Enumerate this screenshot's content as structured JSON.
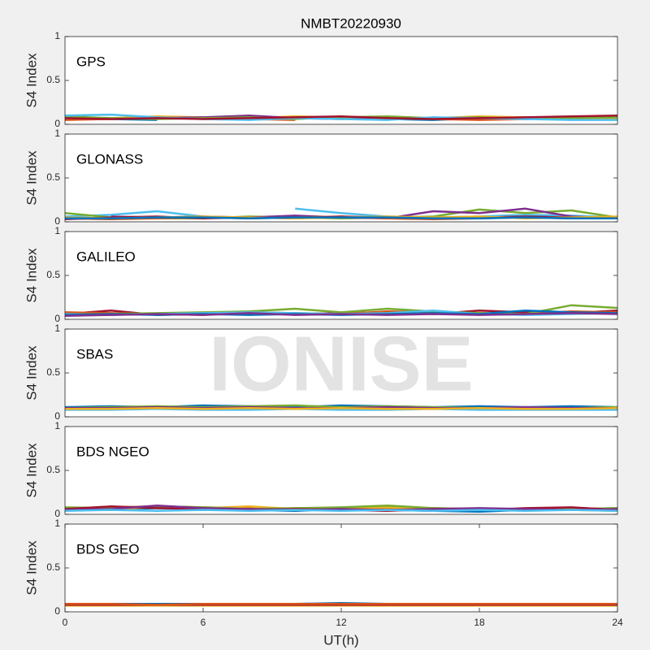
{
  "watermark": "IONISE",
  "chart_data": [
    {
      "type": "line",
      "title": "NMBT20220930",
      "label": "GPS",
      "ylabel": "S4 Index",
      "xlim": [
        0,
        24
      ],
      "ylim": [
        0,
        1
      ],
      "yticks": [
        0,
        0.5,
        1
      ],
      "x": [
        0,
        2,
        4,
        6,
        8,
        10,
        12,
        14,
        16,
        18,
        20,
        22,
        24
      ],
      "series": [
        {
          "color": "#0072BD",
          "values": [
            0.07,
            0.06,
            0.05,
            null,
            0.06,
            0.08,
            0.07,
            0.06,
            0.05,
            0.07,
            0.06,
            0.08,
            0.07
          ]
        },
        {
          "color": "#D95319",
          "values": [
            0.05,
            0.06,
            0.07,
            0.08,
            0.06,
            0.05,
            null,
            0.07,
            0.06,
            0.05,
            0.06,
            0.07,
            0.06
          ]
        },
        {
          "color": "#EDB120",
          "values": [
            0.08,
            0.07,
            0.09,
            0.08,
            0.07,
            0.09,
            0.08,
            0.06,
            0.07,
            0.09,
            0.08,
            0.07,
            0.06
          ]
        },
        {
          "color": "#7E2F8E",
          "values": [
            0.06,
            null,
            0.07,
            0.08,
            0.1,
            0.07,
            0.06,
            0.08,
            0.07,
            null,
            0.06,
            0.08,
            0.09
          ]
        },
        {
          "color": "#77AC30",
          "values": [
            0.09,
            0.07,
            0.06,
            0.07,
            0.08,
            0.06,
            0.08,
            0.09,
            0.07,
            0.08,
            0.06,
            0.07,
            0.08
          ]
        },
        {
          "color": "#4DBEEE",
          "values": [
            0.1,
            0.11,
            0.08,
            0.06,
            0.05,
            0.07,
            0.06,
            0.05,
            0.08,
            0.07,
            0.06,
            0.05,
            0.05
          ]
        },
        {
          "color": "#A2142F",
          "values": [
            0.07,
            0.06,
            0.07,
            0.06,
            0.07,
            0.08,
            0.09,
            0.07,
            0.06,
            0.07,
            0.08,
            0.09,
            0.1
          ]
        }
      ]
    },
    {
      "type": "line",
      "label": "GLONASS",
      "ylabel": "S4 Index",
      "xlim": [
        0,
        24
      ],
      "ylim": [
        0,
        1
      ],
      "yticks": [
        0,
        0.5,
        1
      ],
      "x": [
        0,
        2,
        4,
        6,
        8,
        10,
        12,
        14,
        16,
        18,
        20,
        22,
        24
      ],
      "series": [
        {
          "color": "#4DBEEE",
          "values": [
            0.06,
            0.08,
            0.12,
            0.06,
            null,
            0.15,
            0.1,
            0.06,
            0.05,
            0.06,
            0.08,
            0.07,
            0.05
          ]
        },
        {
          "color": "#77AC30",
          "values": [
            0.1,
            0.05,
            0.04,
            0.04,
            0.06,
            0.05,
            0.04,
            0.05,
            0.06,
            0.14,
            0.1,
            0.13,
            0.05
          ]
        },
        {
          "color": "#7E2F8E",
          "values": [
            null,
            0.06,
            0.05,
            0.06,
            0.05,
            0.07,
            0.05,
            0.04,
            0.12,
            0.1,
            0.15,
            0.06,
            0.04
          ]
        },
        {
          "color": "#D95319",
          "values": [
            0.04,
            0.03,
            0.04,
            0.05,
            0.04,
            0.05,
            0.06,
            0.04,
            0.03,
            0.04,
            0.05,
            0.04,
            0.05
          ]
        },
        {
          "color": "#A2142F",
          "values": [
            0.03,
            0.05,
            0.06,
            0.04,
            0.05,
            0.04,
            0.06,
            0.05,
            0.04,
            0.05,
            0.06,
            0.05,
            0.04
          ]
        },
        {
          "color": "#EDB120",
          "values": [
            0.05,
            0.04,
            0.05,
            0.06,
            0.05,
            0.04,
            0.05,
            0.06,
            0.05,
            0.06,
            0.04,
            0.05,
            0.06
          ]
        },
        {
          "color": "#0072BD",
          "values": [
            0.04,
            0.04,
            0.05,
            0.05,
            0.04,
            0.05,
            0.05,
            0.05,
            0.04,
            0.04,
            0.05,
            0.04,
            0.04
          ]
        }
      ]
    },
    {
      "type": "line",
      "label": "GALILEO",
      "ylabel": "S4 Index",
      "xlim": [
        0,
        24
      ],
      "ylim": [
        0,
        1
      ],
      "yticks": [
        0,
        0.5,
        1
      ],
      "x": [
        0,
        2,
        4,
        6,
        8,
        10,
        12,
        14,
        16,
        18,
        20,
        22,
        24
      ],
      "series": [
        {
          "color": "#A2142F",
          "values": [
            0.06,
            0.1,
            0.05,
            0.06,
            0.07,
            0.06,
            0.07,
            0.08,
            0.06,
            0.1,
            0.08,
            0.07,
            0.1
          ]
        },
        {
          "color": "#D95319",
          "values": [
            0.08,
            0.07,
            0.06,
            0.05,
            0.08,
            0.07,
            0.06,
            0.09,
            0.08,
            0.07,
            0.06,
            0.09,
            0.08
          ]
        },
        {
          "color": "#77AC30",
          "values": [
            0.05,
            0.06,
            0.07,
            0.08,
            0.09,
            0.12,
            0.08,
            0.12,
            0.09,
            0.07,
            0.06,
            0.16,
            0.13
          ]
        },
        {
          "color": "#4DBEEE",
          "values": [
            0.06,
            0.05,
            0.06,
            0.07,
            0.08,
            0.07,
            0.06,
            0.07,
            0.1,
            0.06,
            0.05,
            0.06,
            0.07
          ]
        },
        {
          "color": "#0072BD",
          "values": [
            0.05,
            0.06,
            0.05,
            0.06,
            0.05,
            0.06,
            0.05,
            0.06,
            0.07,
            0.06,
            0.1,
            0.08,
            0.07
          ]
        },
        {
          "color": "#7E2F8E",
          "values": [
            0.04,
            0.05,
            0.06,
            0.05,
            0.07,
            0.05,
            0.06,
            0.05,
            0.06,
            0.05,
            0.06,
            0.07,
            0.06
          ]
        }
      ]
    },
    {
      "type": "line",
      "label": "SBAS",
      "ylabel": "S4 Index",
      "xlim": [
        0,
        24
      ],
      "ylim": [
        0,
        1
      ],
      "yticks": [
        0,
        0.5,
        1
      ],
      "x": [
        0,
        2,
        4,
        6,
        8,
        10,
        12,
        14,
        16,
        18,
        20,
        22,
        24
      ],
      "series": [
        {
          "color": "#0072BD",
          "values": [
            0.11,
            0.12,
            0.11,
            0.13,
            0.12,
            0.11,
            0.13,
            0.12,
            0.11,
            0.12,
            0.11,
            0.12,
            0.11
          ]
        },
        {
          "color": "#77AC30",
          "values": [
            0.1,
            0.11,
            0.12,
            0.11,
            0.12,
            0.13,
            0.11,
            0.12,
            0.11,
            0.1,
            0.11,
            0.1,
            0.11
          ]
        },
        {
          "color": "#4DBEEE",
          "values": [
            0.08,
            0.08,
            0.09,
            0.08,
            0.08,
            0.09,
            0.08,
            0.08,
            0.09,
            0.08,
            0.08,
            0.08,
            0.08
          ]
        },
        {
          "color": "#7E2F8E",
          "values": [
            0.1,
            0.1,
            0.11,
            0.1,
            0.11,
            0.1,
            0.1,
            0.11,
            0.1,
            0.1,
            0.11,
            0.1,
            0.1
          ]
        },
        {
          "color": "#EDB120",
          "values": [
            0.09,
            0.09,
            0.1,
            0.09,
            0.1,
            0.09,
            0.1,
            0.09,
            0.09,
            0.1,
            0.09,
            0.09,
            0.1
          ]
        }
      ]
    },
    {
      "type": "line",
      "label": "BDS NGEO",
      "ylabel": "S4 Index",
      "xlim": [
        0,
        24
      ],
      "ylim": [
        0,
        1
      ],
      "yticks": [
        0,
        0.5,
        1
      ],
      "x": [
        0,
        2,
        4,
        6,
        8,
        10,
        12,
        14,
        16,
        18,
        20,
        22,
        24
      ],
      "series": [
        {
          "color": "#0072BD",
          "values": [
            0.06,
            0.05,
            0.07,
            0.06,
            0.05,
            0.04,
            0.06,
            0.05,
            0.04,
            0.03,
            0.05,
            0.06,
            0.05
          ]
        },
        {
          "color": "#D95319",
          "values": [
            0.07,
            0.08,
            0.09,
            0.08,
            0.07,
            0.06,
            0.05,
            0.06,
            0.07,
            0.06,
            0.05,
            0.06,
            0.07
          ]
        },
        {
          "color": "#EDB120",
          "values": [
            0.05,
            0.06,
            0.08,
            0.07,
            0.09,
            0.06,
            0.07,
            0.08,
            0.06,
            0.05,
            0.06,
            0.05,
            0.04
          ]
        },
        {
          "color": "#77AC30",
          "values": [
            0.08,
            0.07,
            0.09,
            0.08,
            0.06,
            0.07,
            0.08,
            0.1,
            0.07,
            0.06,
            0.05,
            0.06,
            0.07
          ]
        },
        {
          "color": "#A2142F",
          "values": [
            0.06,
            0.09,
            0.07,
            0.06,
            0.05,
            0.06,
            0.05,
            0.04,
            0.06,
            0.05,
            0.07,
            0.08,
            0.05
          ]
        },
        {
          "color": "#7E2F8E",
          "values": [
            0.05,
            0.06,
            0.1,
            0.07,
            0.06,
            0.05,
            0.06,
            0.05,
            0.06,
            0.07,
            0.06,
            0.05,
            0.06
          ]
        },
        {
          "color": "#4DBEEE",
          "values": [
            0.04,
            0.05,
            0.04,
            0.05,
            0.04,
            0.05,
            0.04,
            0.05,
            0.04,
            0.05,
            0.04,
            0.05,
            0.04
          ]
        }
      ]
    },
    {
      "type": "line",
      "label": "BDS GEO",
      "ylabel": "S4 Index",
      "xlabel": "UT(h)",
      "xlim": [
        0,
        24
      ],
      "ylim": [
        0,
        1
      ],
      "yticks": [
        0,
        0.5,
        1
      ],
      "xticks": [
        0,
        6,
        12,
        18,
        24
      ],
      "x": [
        0,
        2,
        4,
        6,
        8,
        10,
        12,
        14,
        16,
        18,
        20,
        22,
        24
      ],
      "series": [
        {
          "color": "#EDB120",
          "values": [
            0.07,
            0.07,
            0.07,
            0.07,
            0.07,
            0.07,
            0.07,
            0.07,
            0.07,
            0.07,
            0.07,
            0.07,
            0.07
          ]
        },
        {
          "color": "#0072BD",
          "values": [
            0.09,
            0.09,
            0.09,
            0.09,
            0.09,
            0.09,
            0.1,
            0.09,
            0.09,
            0.09,
            0.09,
            0.09,
            0.09
          ]
        },
        {
          "color": "#A2142F",
          "values": [
            0.08,
            0.08,
            0.08,
            0.08,
            0.08,
            0.08,
            0.08,
            0.08,
            0.08,
            0.08,
            0.08,
            0.08,
            0.08
          ]
        },
        {
          "color": "#D95319",
          "values": [
            0.09,
            0.09,
            0.08,
            0.09,
            0.09,
            0.09,
            0.09,
            0.09,
            0.09,
            0.09,
            0.09,
            0.09,
            0.09
          ]
        }
      ]
    }
  ]
}
